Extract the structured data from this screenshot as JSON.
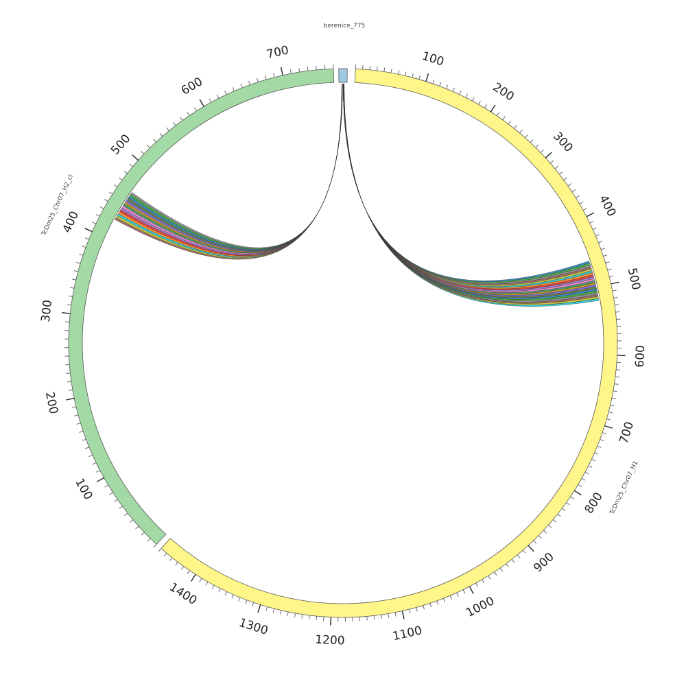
{
  "sequences": [
    {
      "name": "berenice_775",
      "color": "#9ec9e0",
      "range": [
        0,
        14
      ]
    },
    {
      "name": "TcDm25_Chr07_H1",
      "color": "#fff68a",
      "range": [
        0,
        1460
      ]
    },
    {
      "name": "TcDm25_Chr07_H2_cl",
      "color": "#a3d9a5",
      "range": [
        0,
        760
      ]
    }
  ],
  "tick_labels": {
    "TcDm25_Chr07_H1": [
      "100",
      "200",
      "300",
      "400",
      "500",
      "600",
      "700",
      "800",
      "900",
      "1000",
      "1100",
      "1200",
      "1300",
      "1400"
    ],
    "TcDm25_Chr07_H2_cl": [
      "100",
      "200",
      "300",
      "400",
      "500",
      "600",
      "700"
    ]
  },
  "links": [
    {
      "from": "berenice_775",
      "to": "TcDm25_Chr07_H1",
      "target_range": [
        460,
        520
      ],
      "count": 20
    },
    {
      "from": "berenice_775",
      "to": "TcDm25_Chr07_H2_cl",
      "target_range": [
        425,
        465
      ],
      "count": 14
    }
  ],
  "link_colors": [
    "#1f77b4",
    "#2ca02c",
    "#7f7f7f",
    "#8c564b",
    "#bcbd22",
    "#17becf",
    "#ff7f0e",
    "#d62728",
    "#9467bd",
    "#e377c2",
    "#2e8b57",
    "#b8860b",
    "#6a5acd",
    "#556b2f"
  ]
}
